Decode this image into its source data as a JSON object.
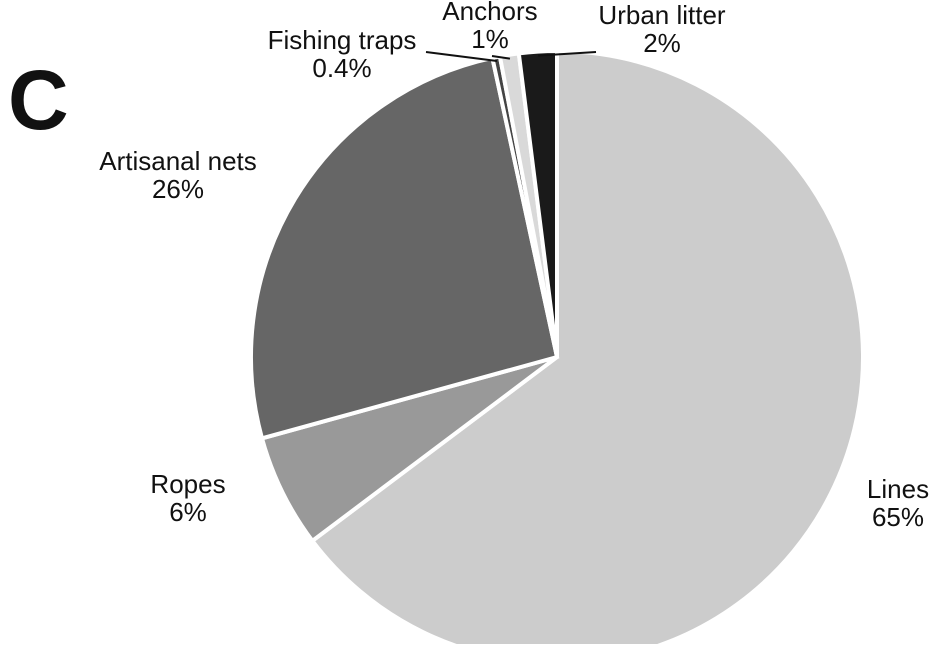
{
  "panel_letter": "C",
  "chart_data": {
    "type": "pie",
    "start": "12 o'clock",
    "direction": "clockwise",
    "slices": [
      {
        "label": "Lines",
        "pct_text": "65%",
        "value": 65,
        "color": "#cccccc"
      },
      {
        "label": "Ropes",
        "pct_text": "6%",
        "value": 6,
        "color": "#999999"
      },
      {
        "label": "Artisanal nets",
        "pct_text": "26%",
        "value": 26,
        "color": "#666666"
      },
      {
        "label": "Fishing traps",
        "pct_text": "0.4%",
        "value": 0.4,
        "color": "#444444"
      },
      {
        "label": "Anchors",
        "pct_text": "1%",
        "value": 1,
        "color": "#d9d9d9"
      },
      {
        "label": "Urban litter",
        "pct_text": "2%",
        "value": 2,
        "color": "#1a1a1a"
      }
    ]
  }
}
